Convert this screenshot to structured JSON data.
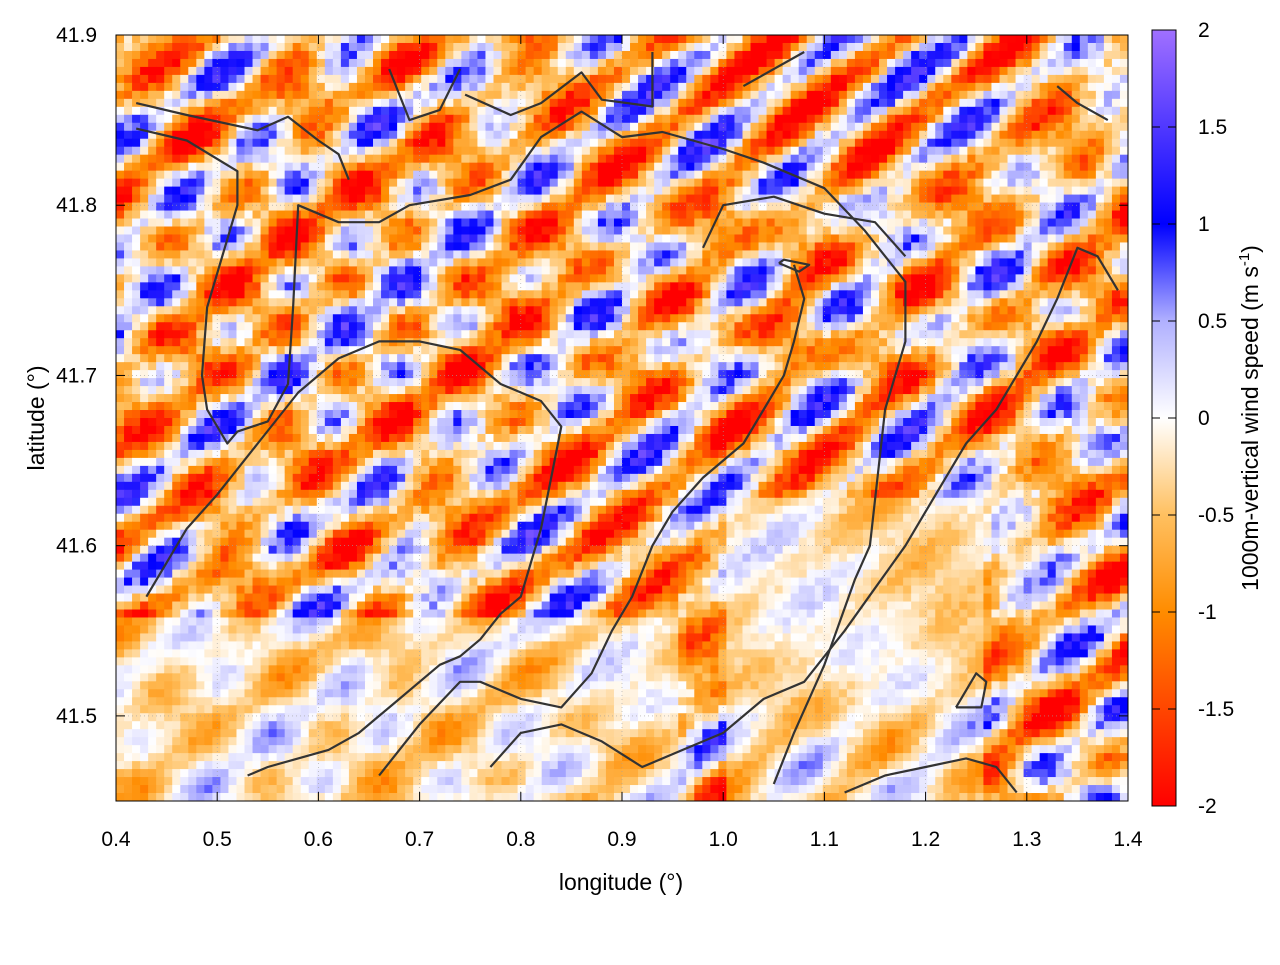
{
  "chart_data": {
    "type": "heatmap",
    "title": "",
    "xlabel": "longitude (°)",
    "ylabel": "latitude (°)",
    "xlim": [
      0.4,
      1.4
    ],
    "ylim": [
      41.45,
      41.9
    ],
    "x_ticks": [
      "0.4",
      "0.5",
      "0.6",
      "0.7",
      "0.8",
      "0.9",
      "1.0",
      "1.1",
      "1.2",
      "1.3",
      "1.4"
    ],
    "y_ticks": [
      "41.5",
      "41.6",
      "41.7",
      "41.8",
      "41.9"
    ],
    "grid": true,
    "colorbar": {
      "label_main": "1000m-vertical wind speed (m s",
      "label_sup": "-1",
      "label_end": ")",
      "range": [
        -2,
        2
      ],
      "ticks": [
        "2",
        "1.5",
        "1",
        "0.5",
        "0",
        "-0.5",
        "-1",
        "-1.5",
        "-2"
      ],
      "colormap": [
        {
          "value": -2.0,
          "color": "#ff0000"
        },
        {
          "value": -1.0,
          "color": "#ff8c00"
        },
        {
          "value": -0.5,
          "color": "#ffc060"
        },
        {
          "value": 0.0,
          "color": "#ffffff"
        },
        {
          "value": 0.5,
          "color": "#b0b0ff"
        },
        {
          "value": 1.0,
          "color": "#0000ff"
        },
        {
          "value": 2.0,
          "color": "#a070ff"
        }
      ]
    },
    "contour_color": "#333333",
    "contours": [
      [
        [
          0.42,
          41.86
        ],
        [
          0.47,
          41.853
        ],
        [
          0.54,
          41.844
        ],
        [
          0.57,
          41.852
        ],
        [
          0.6,
          41.838
        ],
        [
          0.62,
          41.83
        ],
        [
          0.63,
          41.815
        ]
      ],
      [
        [
          0.42,
          41.845
        ],
        [
          0.47,
          41.838
        ],
        [
          0.52,
          41.82
        ],
        [
          0.52,
          41.8
        ],
        [
          0.51,
          41.78
        ],
        [
          0.49,
          41.74
        ],
        [
          0.485,
          41.7
        ],
        [
          0.49,
          41.68
        ],
        [
          0.51,
          41.66
        ],
        [
          0.52,
          41.667
        ],
        [
          0.55,
          41.673
        ],
        [
          0.57,
          41.695
        ],
        [
          0.575,
          41.74
        ],
        [
          0.58,
          41.8
        ],
        [
          0.62,
          41.79
        ],
        [
          0.66,
          41.79
        ],
        [
          0.69,
          41.8
        ],
        [
          0.75,
          41.806
        ],
        [
          0.79,
          41.815
        ],
        [
          0.82,
          41.84
        ],
        [
          0.86,
          41.855
        ],
        [
          0.9,
          41.84
        ],
        [
          0.94,
          41.843
        ],
        [
          1.0,
          41.833
        ],
        [
          1.04,
          41.825
        ],
        [
          1.1,
          41.81
        ],
        [
          1.14,
          41.785
        ],
        [
          1.18,
          41.755
        ],
        [
          1.18,
          41.72
        ],
        [
          1.16,
          41.68
        ],
        [
          1.145,
          41.6
        ],
        [
          1.13,
          41.58
        ],
        [
          1.1,
          41.53
        ],
        [
          1.07,
          41.49
        ],
        [
          1.05,
          41.46
        ]
      ],
      [
        [
          0.745,
          41.865
        ],
        [
          0.79,
          41.853
        ],
        [
          0.82,
          41.86
        ],
        [
          0.86,
          41.878
        ],
        [
          0.88,
          41.862
        ],
        [
          0.93,
          41.858
        ],
        [
          0.93,
          41.89
        ]
      ],
      [
        [
          1.02,
          41.87
        ],
        [
          1.08,
          41.89
        ]
      ],
      [
        [
          1.33,
          41.87
        ],
        [
          1.35,
          41.86
        ],
        [
          1.38,
          41.85
        ]
      ],
      [
        [
          0.67,
          41.88
        ],
        [
          0.69,
          41.85
        ],
        [
          0.72,
          41.856
        ],
        [
          0.74,
          41.88
        ]
      ],
      [
        [
          0.98,
          41.775
        ],
        [
          1.0,
          41.8
        ],
        [
          1.05,
          41.805
        ],
        [
          1.1,
          41.795
        ],
        [
          1.15,
          41.79
        ],
        [
          1.18,
          41.77
        ]
      ],
      [
        [
          0.43,
          41.57
        ],
        [
          0.45,
          41.59
        ],
        [
          0.47,
          41.61
        ],
        [
          0.5,
          41.63
        ],
        [
          0.54,
          41.66
        ],
        [
          0.58,
          41.69
        ],
        [
          0.62,
          41.71
        ],
        [
          0.66,
          41.72
        ],
        [
          0.7,
          41.72
        ],
        [
          0.74,
          41.715
        ],
        [
          0.78,
          41.695
        ],
        [
          0.82,
          41.685
        ],
        [
          0.84,
          41.67
        ],
        [
          0.83,
          41.64
        ],
        [
          0.82,
          41.61
        ],
        [
          0.8,
          41.57
        ],
        [
          0.78,
          41.56
        ],
        [
          0.76,
          41.545
        ],
        [
          0.74,
          41.535
        ],
        [
          0.72,
          41.53
        ],
        [
          0.7,
          41.52
        ],
        [
          0.68,
          41.51
        ],
        [
          0.66,
          41.5
        ],
        [
          0.64,
          41.49
        ],
        [
          0.61,
          41.48
        ],
        [
          0.58,
          41.475
        ],
        [
          0.55,
          41.47
        ],
        [
          0.53,
          41.465
        ]
      ],
      [
        [
          0.66,
          41.465
        ],
        [
          0.7,
          41.495
        ],
        [
          0.74,
          41.52
        ],
        [
          0.76,
          41.52
        ],
        [
          0.8,
          41.51
        ],
        [
          0.84,
          41.505
        ],
        [
          0.87,
          41.525
        ],
        [
          0.89,
          41.55
        ],
        [
          0.91,
          41.57
        ],
        [
          0.93,
          41.6
        ],
        [
          0.95,
          41.62
        ],
        [
          0.98,
          41.64
        ],
        [
          1.02,
          41.66
        ],
        [
          1.04,
          41.68
        ],
        [
          1.06,
          41.7
        ],
        [
          1.07,
          41.72
        ],
        [
          1.08,
          41.745
        ],
        [
          1.07,
          41.765
        ]
      ],
      [
        [
          0.77,
          41.47
        ],
        [
          0.8,
          41.49
        ],
        [
          0.84,
          41.495
        ],
        [
          0.88,
          41.485
        ],
        [
          0.92,
          41.47
        ],
        [
          0.96,
          41.48
        ],
        [
          1.0,
          41.49
        ],
        [
          1.04,
          41.51
        ],
        [
          1.08,
          41.52
        ],
        [
          1.12,
          41.55
        ],
        [
          1.15,
          41.575
        ],
        [
          1.18,
          41.6
        ],
        [
          1.2,
          41.62
        ],
        [
          1.22,
          41.64
        ],
        [
          1.24,
          41.66
        ],
        [
          1.27,
          41.68
        ],
        [
          1.29,
          41.7
        ],
        [
          1.31,
          41.72
        ],
        [
          1.33,
          41.745
        ],
        [
          1.35,
          41.775
        ],
        [
          1.37,
          41.77
        ],
        [
          1.39,
          41.75
        ]
      ],
      [
        [
          1.12,
          41.455
        ],
        [
          1.16,
          41.465
        ],
        [
          1.2,
          41.47
        ],
        [
          1.24,
          41.475
        ],
        [
          1.27,
          41.47
        ],
        [
          1.29,
          41.455
        ]
      ],
      [
        [
          1.23,
          41.505
        ],
        [
          1.25,
          41.525
        ],
        [
          1.26,
          41.52
        ],
        [
          1.255,
          41.505
        ],
        [
          1.23,
          41.505
        ]
      ],
      [
        [
          1.055,
          41.766
        ],
        [
          1.075,
          41.761
        ],
        [
          1.085,
          41.765
        ],
        [
          1.06,
          41.768
        ],
        [
          1.055,
          41.766
        ]
      ]
    ]
  }
}
